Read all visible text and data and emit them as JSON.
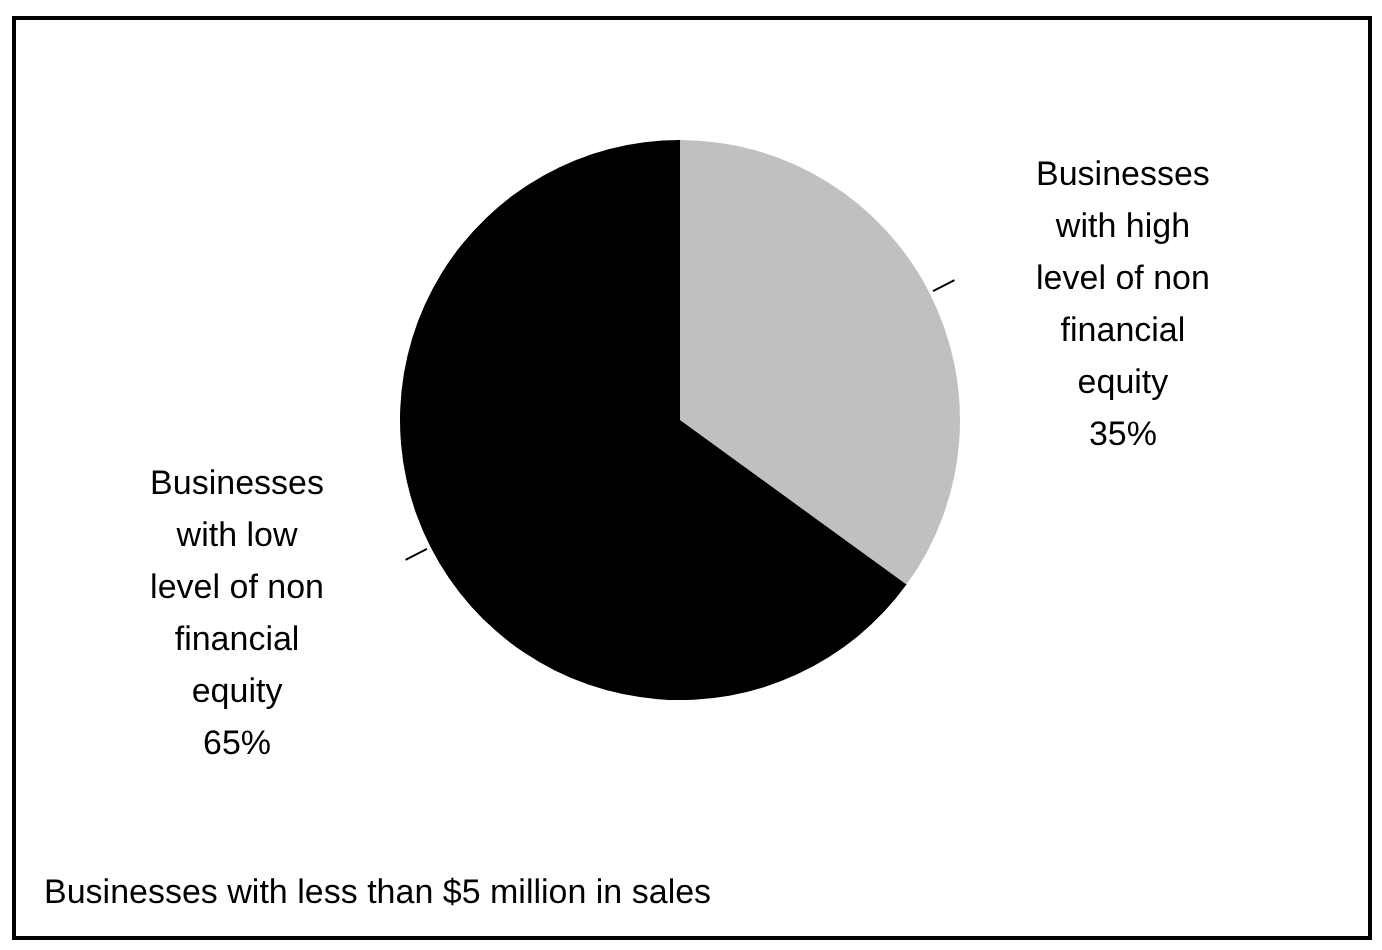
{
  "chart_data": {
    "type": "pie",
    "categories": [
      "Businesses with high level of non financial equity",
      "Businesses with low level of non financial equity"
    ],
    "values": [
      35,
      65
    ],
    "value_labels": [
      "35%",
      "65%"
    ],
    "colors": [
      "#c0c0c0",
      "#000000"
    ],
    "annotations": [
      "Businesses with less than $5 million in sales"
    ],
    "legend": false
  }
}
